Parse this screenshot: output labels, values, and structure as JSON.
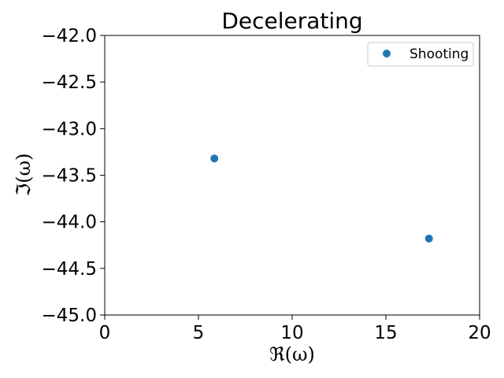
{
  "chart_data": {
    "type": "scatter",
    "title": "Decelerating",
    "xlabel": "ℜ(ω)",
    "ylabel": "ℑ(ω)",
    "xlim": [
      0,
      20
    ],
    "ylim": [
      -45.0,
      -42.0
    ],
    "xticks": [
      0,
      5,
      10,
      15,
      20
    ],
    "yticks": [
      -42.0,
      -42.5,
      -43.0,
      -43.5,
      -44.0,
      -44.5,
      -45.0
    ],
    "xtick_labels": [
      "0",
      "5",
      "10",
      "15",
      "20"
    ],
    "ytick_labels": [
      "−42.0",
      "−42.5",
      "−43.0",
      "−43.5",
      "−44.0",
      "−44.5",
      "−45.0"
    ],
    "grid": false,
    "legend_position": "top-right",
    "series": [
      {
        "name": "Shooting",
        "color": "#1f77b4",
        "marker": "circle",
        "points": [
          {
            "x": 5.85,
            "y": -43.32
          },
          {
            "x": 17.3,
            "y": -44.18
          }
        ]
      }
    ]
  }
}
